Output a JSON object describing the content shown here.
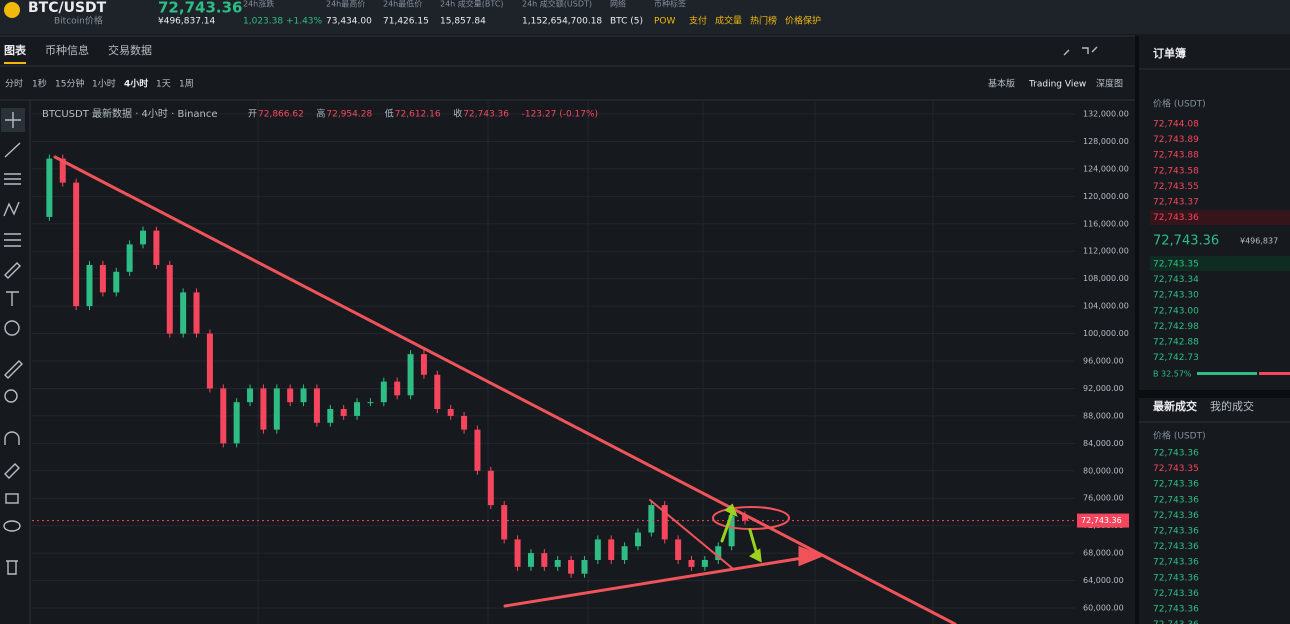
{
  "header": {
    "pair": "BTC/USDT",
    "subtitle": "Bitcoin价格",
    "price": "72,743.36",
    "price_cny": "¥496,837.14",
    "stats": [
      {
        "label": "24h涨跌",
        "value": "1,023.38 +1.43%"
      },
      {
        "label": "24h最高价",
        "value": "73,434.00"
      },
      {
        "label": "24h最低价",
        "value": "71,426.15"
      },
      {
        "label": "24h 成交量(BTC)",
        "value": "15,857.84"
      },
      {
        "label": "24h 成交额(USDT)",
        "value": "1,152,654,700.18"
      },
      {
        "label": "网络",
        "value": "BTC (5)"
      }
    ],
    "tags_label": "币种标签",
    "tags": [
      "POW",
      "支付",
      "成交量",
      "热门榜",
      "价格保护"
    ]
  },
  "tabs": [
    "图表",
    "币种信息",
    "交易数据"
  ],
  "intervals": [
    "分时",
    "1秒",
    "15分钟",
    "1小时",
    "4小时",
    "1天",
    "1周"
  ],
  "views": [
    "基本版",
    "Trading View",
    "深度图"
  ],
  "chart": {
    "type": "candlestick",
    "legend": "BTCUSDT 最新数据 · 4小时 · Binance",
    "ohlc": [
      {
        "label": "开",
        "value": "72,866.62"
      },
      {
        "label": "高",
        "value": "72,954.28"
      },
      {
        "label": "低",
        "value": "72,612.16"
      },
      {
        "label": "收",
        "value": "72,743.36"
      }
    ],
    "change": "-123.27 (-0.17%)",
    "closes": [
      117000,
      125500,
      122000,
      104000,
      110000,
      106000,
      109000,
      113000,
      115000,
      110000,
      100000,
      106000,
      100000,
      92000,
      84000,
      90000,
      92000,
      86000,
      92000,
      90000,
      92000,
      87000,
      89000,
      88000,
      90000,
      90000,
      93000,
      91000,
      97000,
      94000,
      89000,
      88000,
      86000,
      80000,
      75000,
      70000,
      66000,
      68000,
      66000,
      67000,
      65000,
      67000,
      70000,
      67000,
      69000,
      71000,
      75000,
      70000,
      67000,
      66000,
      67000,
      69000,
      73500,
      72743
    ],
    "ylim": [
      57670,
      134040
    ],
    "yticks": [
      {
        "value": 132000,
        "label": "132,000.00"
      },
      {
        "value": 128000,
        "label": "128,000.00"
      },
      {
        "value": 124000,
        "label": "124,000.00"
      },
      {
        "value": 120000,
        "label": "120,000.00"
      },
      {
        "value": 116000,
        "label": "116,000.00"
      },
      {
        "value": 112000,
        "label": "112,000.00"
      },
      {
        "value": 108000,
        "label": "108,000.00"
      },
      {
        "value": 104000,
        "label": "104,000.00"
      },
      {
        "value": 100000,
        "label": "100,000.00"
      },
      {
        "value": 96000,
        "label": "96,000.00"
      },
      {
        "value": 92000,
        "label": "92,000.00"
      },
      {
        "value": 88000,
        "label": "88,000.00"
      },
      {
        "value": 84000,
        "label": "84,000.00"
      },
      {
        "value": 80000,
        "label": "80,000.00"
      },
      {
        "value": 76000,
        "label": "76,000.00"
      },
      {
        "value": 72000,
        "label": "72,000.00"
      },
      {
        "value": 68000,
        "label": "68,000.00"
      },
      {
        "value": 64000,
        "label": "64,000.00"
      },
      {
        "value": 60000,
        "label": "60,000.00"
      }
    ],
    "current_price": {
      "value": 72743.36,
      "label": "72,743.36"
    }
  },
  "orderbook": {
    "title": "订单簿",
    "col": "价格 (USDT)",
    "asks": [
      "72,744.08",
      "72,743.89",
      "72,743.88",
      "72,743.58",
      "72,743.55",
      "72,743.37",
      "72,743.36"
    ],
    "mid": "72,743.36",
    "mid_cny": "¥496,837",
    "bids": [
      "72,743.35",
      "72,743.34",
      "72,743.30",
      "72,743.00",
      "72,742.98",
      "72,742.88",
      "72,742.73"
    ],
    "ratio": "B 32.57%"
  },
  "trades": {
    "tabs": [
      "最新成交",
      "我的成交"
    ],
    "col": "价格 (USDT)",
    "prices": [
      "72,743.36",
      "72,743.35",
      "72,743.36",
      "72,743.36",
      "72,743.36",
      "72,743.36",
      "72,743.36",
      "72,743.36",
      "72,743.36",
      "72,743.36",
      "72,743.36",
      "72,743.36"
    ],
    "red": [
      1
    ]
  }
}
